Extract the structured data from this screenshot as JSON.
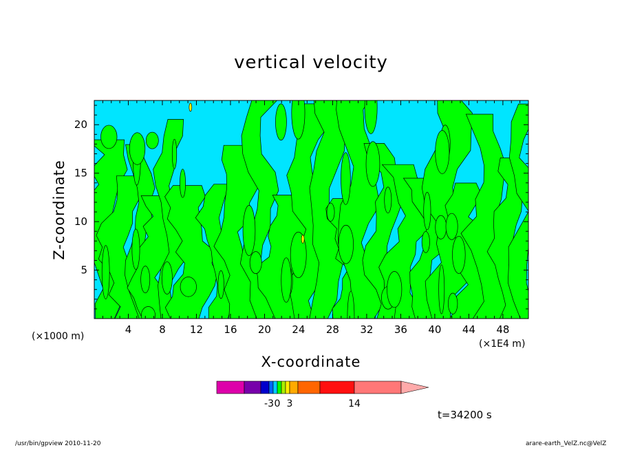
{
  "chart_data": {
    "type": "heatmap",
    "title": "vertical velocity",
    "xlabel": "X-coordinate",
    "ylabel": "Z-coordinate",
    "x_ticks": [
      4,
      8,
      12,
      16,
      20,
      24,
      28,
      32,
      36,
      40,
      44,
      48
    ],
    "x_tick_labels": [
      "4",
      "8",
      "12",
      "16",
      "20",
      "24",
      "28",
      "32",
      "36",
      "40",
      "44",
      "48"
    ],
    "y_ticks": [
      5,
      10,
      15,
      20
    ],
    "y_tick_labels": [
      "5",
      "10",
      "15",
      "20"
    ],
    "xlim": [
      0,
      51
    ],
    "ylim": [
      0,
      22.5
    ],
    "z_unit": "(×1000 m)",
    "x_unit": "(×1E4 m)",
    "time_label": "t=34200 s",
    "colorbar": {
      "levels": [
        -3,
        0,
        3,
        14
      ],
      "tick_labels": [
        "-3",
        "0",
        "3",
        "14"
      ],
      "colors": [
        "#dd00aa",
        "#7700aa",
        "#0000cc",
        "#0066ff",
        "#00ccff",
        "#00ff00",
        "#aaee00",
        "#ffee00",
        "#ffaa00",
        "#ff6600",
        "#ff1010",
        "#ff7777",
        "#ffaaaa"
      ]
    },
    "field_colors": {
      "background": "#00e5ff",
      "updraft": "#00ff00",
      "strong_updraft": "#ffee00"
    }
  },
  "footer": {
    "left": "/usr/bin/gpview   2010-11-20",
    "right": "arare-earth_VelZ.nc@VelZ"
  }
}
